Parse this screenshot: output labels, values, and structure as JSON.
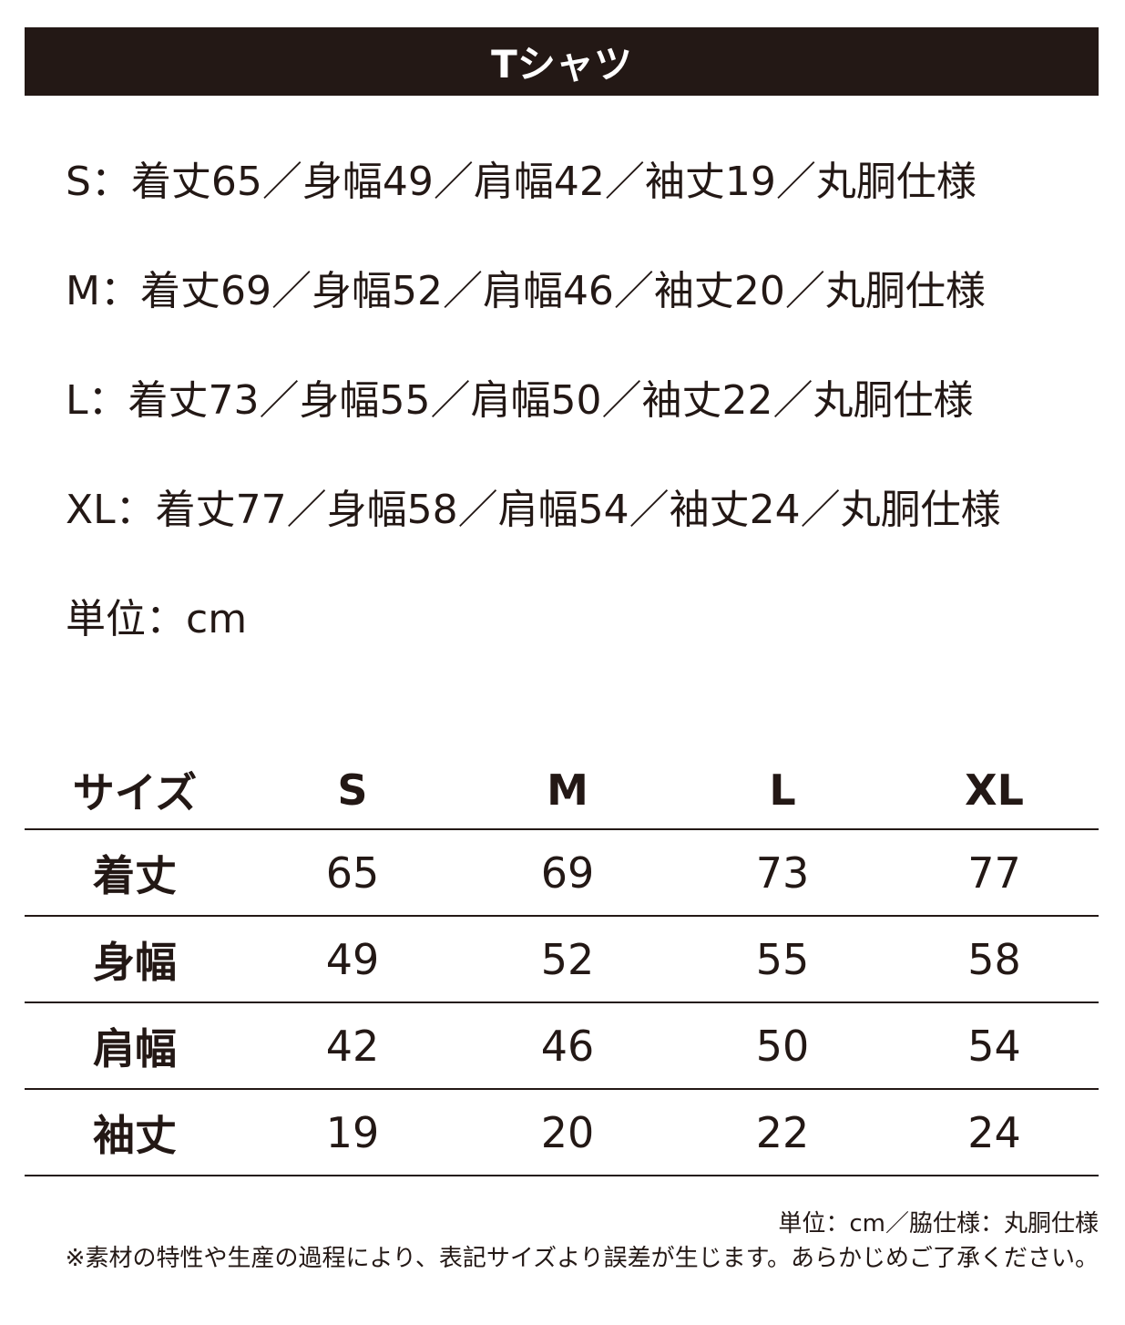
{
  "title": "Tシャツ",
  "spec_lines": [
    "S：着丈65／身幅49／肩幅42／袖丈19／丸胴仕様",
    "M：着丈69／身幅52／肩幅46／袖丈20／丸胴仕様",
    "L：着丈73／身幅55／肩幅50／袖丈22／丸胴仕様",
    "XL：着丈77／身幅58／肩幅54／袖丈24／丸胴仕様",
    "単位：cm"
  ],
  "table": {
    "headers": [
      "サイズ",
      "S",
      "M",
      "L",
      "XL"
    ],
    "rows": [
      [
        "着丈",
        "65",
        "69",
        "73",
        "77"
      ],
      [
        "身幅",
        "49",
        "52",
        "55",
        "58"
      ],
      [
        "肩幅",
        "42",
        "46",
        "50",
        "54"
      ],
      [
        "袖丈",
        "19",
        "20",
        "22",
        "24"
      ]
    ]
  },
  "footer": {
    "unit_note": "単位：cm／脇仕様：丸胴仕様",
    "disclaimer": "※素材の特性や生産の過程により、表記サイズより誤差が生じます。あらかじめご了承ください。"
  },
  "colors": {
    "bar": "#231815",
    "text": "#231815"
  }
}
